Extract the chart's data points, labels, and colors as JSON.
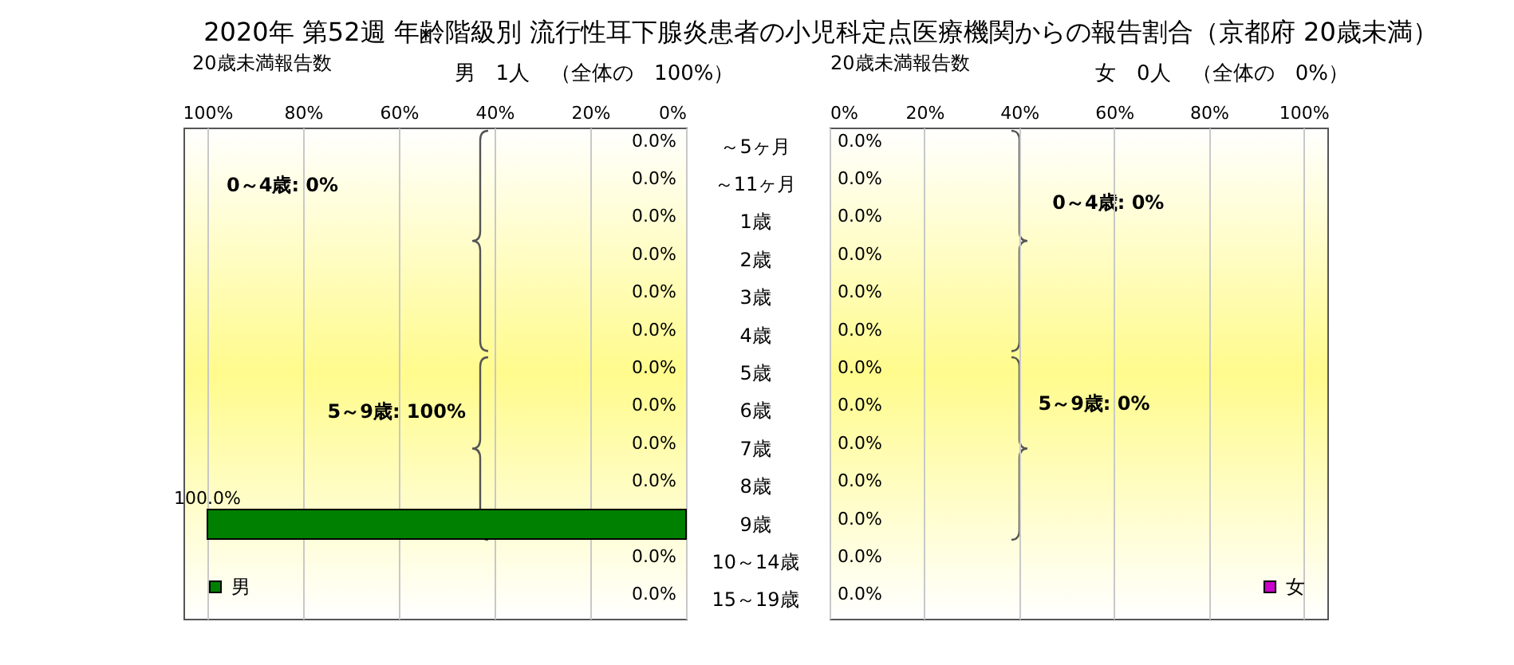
{
  "chart_data": [
    {
      "type": "bar",
      "orientation": "horizontal",
      "title": "2020年 第52週 年齢階級別 流行性耳下腺炎患者の小児科定点医療機関からの報告割合（京都府 20歳未満）",
      "subtitle": "男　1人　（全体の　100%）",
      "xlabel": "20歳未満報告数",
      "categories": [
        "～5ヶ月",
        "～11ヶ月",
        "1歳",
        "2歳",
        "3歳",
        "4歳",
        "5歳",
        "6歳",
        "7歳",
        "8歳",
        "9歳",
        "10～14歳",
        "15～19歳"
      ],
      "series": [
        {
          "name": "男",
          "color": "#008000",
          "values": [
            0,
            0,
            0,
            0,
            0,
            0,
            0,
            0,
            0,
            0,
            100,
            0,
            0
          ],
          "value_labels": [
            "0.0%",
            "0.0%",
            "0.0%",
            "0.0%",
            "0.0%",
            "0.0%",
            "0.0%",
            "0.0%",
            "0.0%",
            "0.0%",
            "100.0%",
            "0.0%",
            "0.0%"
          ]
        }
      ],
      "xlim": [
        105,
        0
      ],
      "xticks": [
        {
          "value": 100,
          "label": "100%"
        },
        {
          "value": 80,
          "label": "80%"
        },
        {
          "value": 60,
          "label": "60%"
        },
        {
          "value": 40,
          "label": "40%"
        },
        {
          "value": 20,
          "label": "20%"
        },
        {
          "value": 0,
          "label": "0%"
        }
      ],
      "grid": "x",
      "legend": "bottom left",
      "annotations": [
        "0～4歳: 0%",
        "5～9歳: 100%"
      ]
    },
    {
      "type": "bar",
      "orientation": "horizontal",
      "subtitle": "女　0人　（全体の　0%）",
      "xlabel": "20歳未満報告数",
      "series": [
        {
          "name": "女",
          "color": "#cc00cc",
          "values": [
            0,
            0,
            0,
            0,
            0,
            0,
            0,
            0,
            0,
            0,
            0,
            0,
            0
          ],
          "value_labels": [
            "0.0%",
            "0.0%",
            "0.0%",
            "0.0%",
            "0.0%",
            "0.0%",
            "0.0%",
            "0.0%",
            "0.0%",
            "0.0%",
            "0.0%",
            "0.0%",
            "0.0%"
          ]
        }
      ],
      "xlim": [
        0,
        105
      ],
      "xticks": [
        {
          "value": 0,
          "label": "0%"
        },
        {
          "value": 20,
          "label": "20%"
        },
        {
          "value": 40,
          "label": "40%"
        },
        {
          "value": 60,
          "label": "60%"
        },
        {
          "value": 80,
          "label": "80%"
        },
        {
          "value": 100,
          "label": "100%"
        }
      ],
      "grid": "x",
      "legend": "bottom right",
      "tick_labels": "x",
      "annotations": [
        "0～4歳: 0%",
        "5～9歳: 0%"
      ]
    }
  ]
}
